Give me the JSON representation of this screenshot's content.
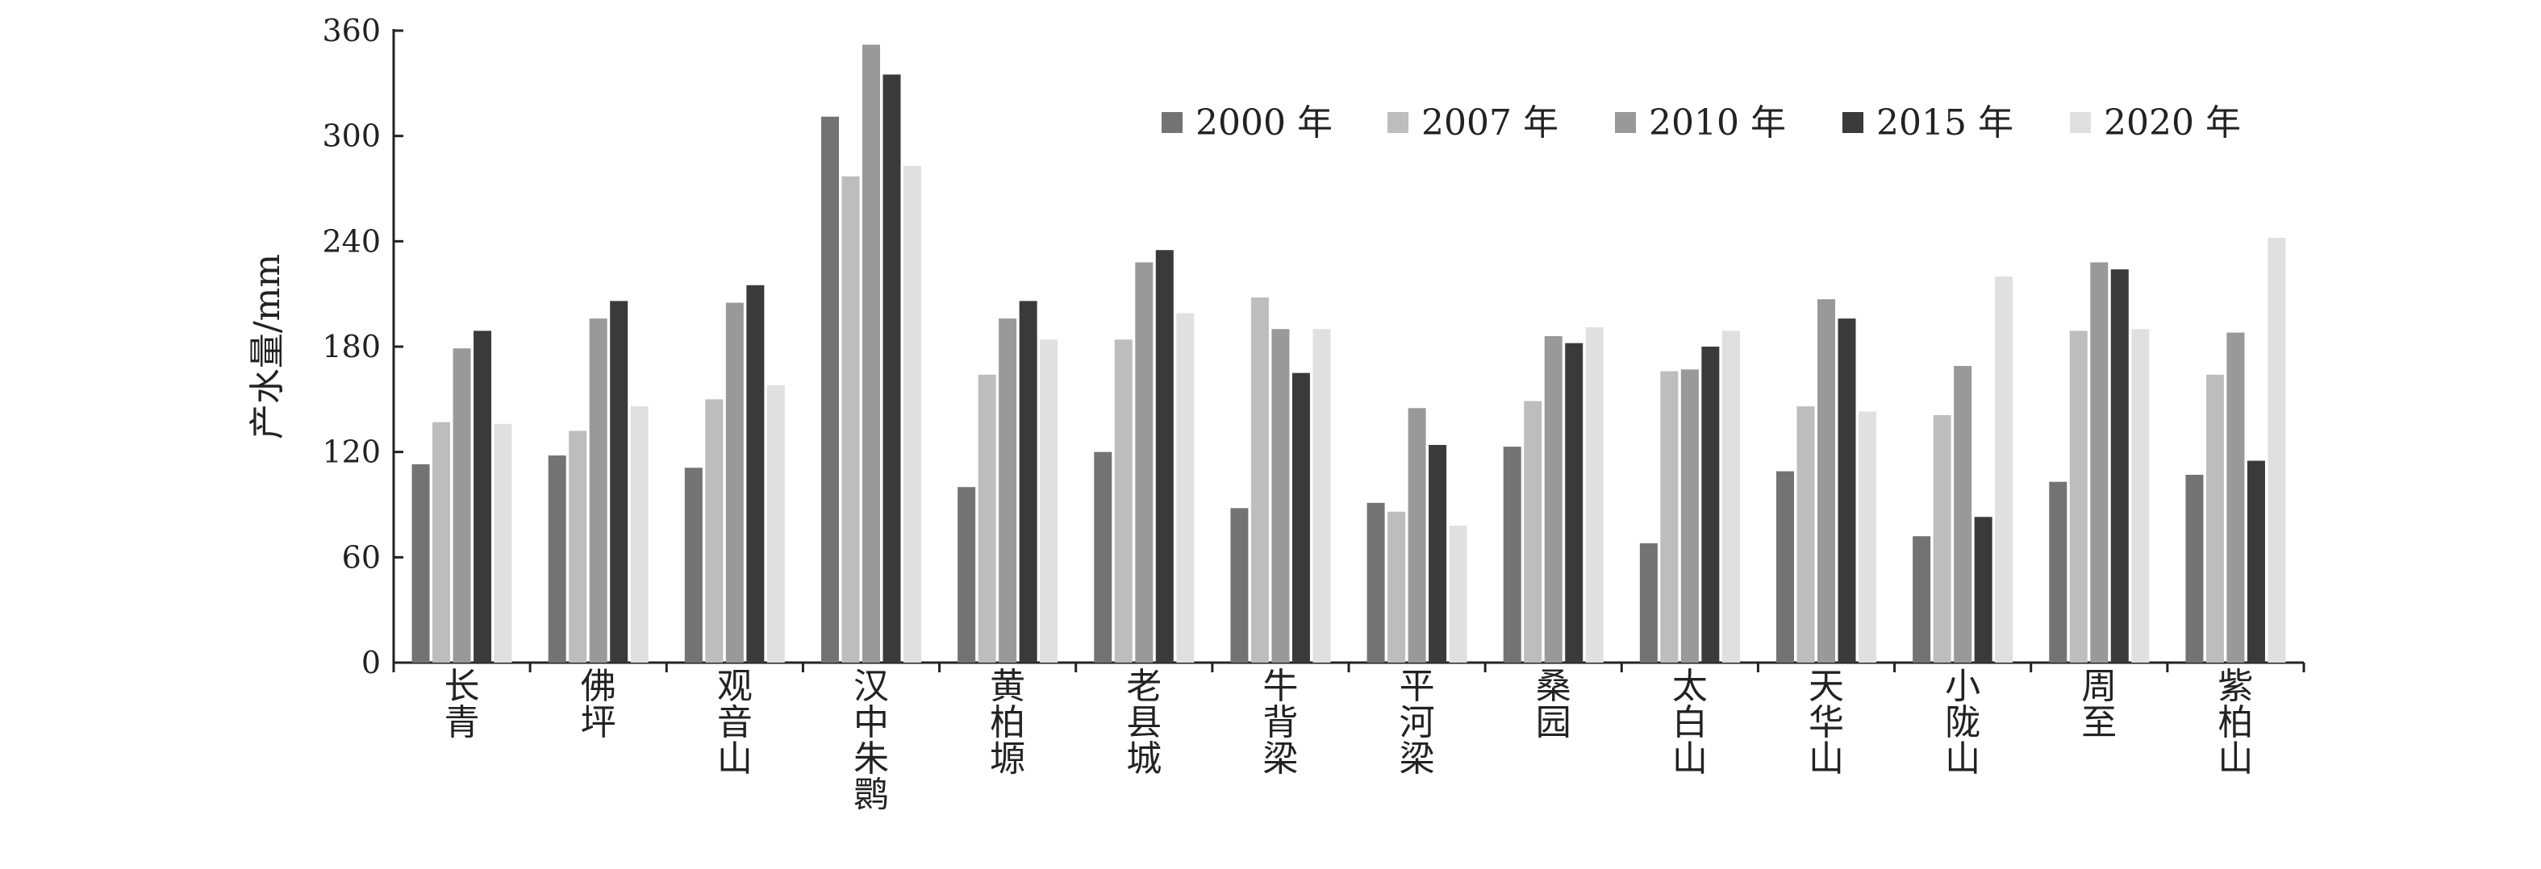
{
  "chart_data": {
    "type": "bar",
    "title": "",
    "xlabel": "",
    "ylabel": "产水量/mm",
    "ylim": [
      0,
      360
    ],
    "yticks": [
      0,
      60,
      120,
      180,
      240,
      300,
      360
    ],
    "grid": false,
    "legend_position": "top-right",
    "categories": [
      "长青",
      "佛坪",
      "观音山",
      "汉中朱鹮",
      "黄柏塬",
      "老县城",
      "牛背梁",
      "平河梁",
      "桑园",
      "太白山",
      "天华山",
      "小陇山",
      "周至",
      "紫柏山"
    ],
    "series": [
      {
        "name": "2000 年",
        "color": "#737373",
        "values": [
          113,
          118,
          111,
          311,
          100,
          120,
          88,
          91,
          123,
          68,
          109,
          72,
          103,
          107
        ]
      },
      {
        "name": "2007 年",
        "color": "#bdbdbd",
        "values": [
          137,
          132,
          150,
          277,
          164,
          184,
          208,
          86,
          149,
          166,
          146,
          141,
          189,
          164
        ]
      },
      {
        "name": "2010 年",
        "color": "#999999",
        "values": [
          179,
          196,
          205,
          352,
          196,
          228,
          190,
          145,
          186,
          167,
          207,
          169,
          228,
          188
        ]
      },
      {
        "name": "2015 年",
        "color": "#3a3a3a",
        "values": [
          189,
          206,
          215,
          335,
          206,
          235,
          165,
          124,
          182,
          180,
          196,
          83,
          224,
          115
        ]
      },
      {
        "name": "2020 年",
        "color": "#e0e0e0",
        "values": [
          136,
          146,
          158,
          283,
          184,
          199,
          190,
          78,
          191,
          189,
          143,
          220,
          190,
          242
        ]
      }
    ]
  }
}
